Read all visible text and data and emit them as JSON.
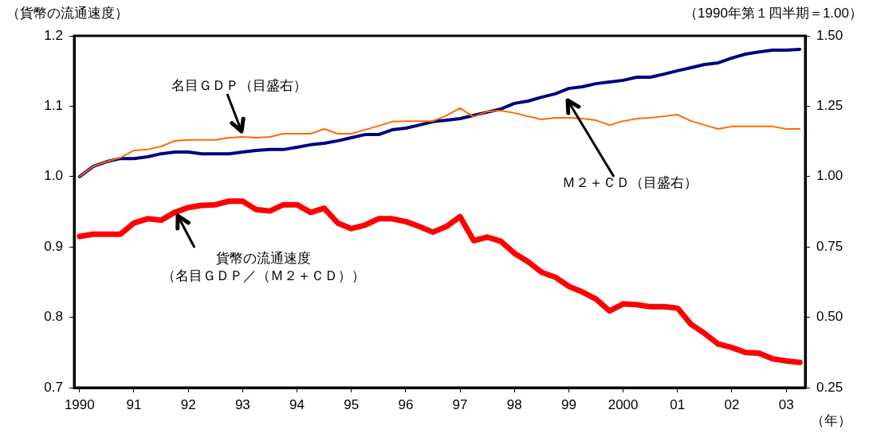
{
  "chart_data": {
    "type": "line",
    "ylabel": "（貨幣の流通速度）",
    "y2label": "（1990年第１四半期＝1.00）",
    "xlabel": "（年）",
    "x": [
      1990,
      1990.25,
      1990.5,
      1990.75,
      1991,
      1991.25,
      1991.5,
      1991.75,
      1992,
      1992.25,
      1992.5,
      1992.75,
      1993,
      1993.25,
      1993.5,
      1993.75,
      1994,
      1994.25,
      1994.5,
      1994.75,
      1995,
      1995.25,
      1995.5,
      1995.75,
      1996,
      1996.25,
      1996.5,
      1996.75,
      1997,
      1997.25,
      1997.5,
      1997.75,
      1998,
      1998.25,
      1998.5,
      1998.75,
      1999,
      1999.25,
      1999.5,
      1999.75,
      2000,
      2000.25,
      2000.5,
      2000.75,
      2001,
      2001.25,
      2001.5,
      2001.75,
      2002,
      2002.25,
      2002.5,
      2002.75,
      2003,
      2003.25
    ],
    "series": [
      {
        "name": "Ｍ２＋ＣＤ（目盛右）",
        "color": "#000080",
        "axis": "y2",
        "values": [
          1.0,
          1.036,
          1.053,
          1.064,
          1.064,
          1.07,
          1.081,
          1.087,
          1.087,
          1.081,
          1.081,
          1.081,
          1.087,
          1.093,
          1.096,
          1.096,
          1.104,
          1.113,
          1.118,
          1.127,
          1.138,
          1.149,
          1.149,
          1.166,
          1.172,
          1.183,
          1.195,
          1.2,
          1.206,
          1.217,
          1.229,
          1.24,
          1.26,
          1.268,
          1.282,
          1.294,
          1.313,
          1.319,
          1.33,
          1.336,
          1.342,
          1.353,
          1.353,
          1.364,
          1.376,
          1.387,
          1.398,
          1.404,
          1.421,
          1.435,
          1.443,
          1.449,
          1.449,
          1.452
        ]
      },
      {
        "name": "名目ＧＤＰ（目盛右）",
        "color": "#ff6a00",
        "axis": "y2",
        "values": [
          1.0,
          1.036,
          1.053,
          1.067,
          1.093,
          1.096,
          1.107,
          1.127,
          1.13,
          1.13,
          1.13,
          1.138,
          1.141,
          1.138,
          1.141,
          1.152,
          1.152,
          1.152,
          1.169,
          1.152,
          1.152,
          1.166,
          1.18,
          1.195,
          1.197,
          1.197,
          1.197,
          1.217,
          1.243,
          1.212,
          1.231,
          1.234,
          1.226,
          1.214,
          1.203,
          1.209,
          1.209,
          1.206,
          1.2,
          1.183,
          1.197,
          1.206,
          1.209,
          1.214,
          1.22,
          1.197,
          1.183,
          1.169,
          1.178,
          1.178,
          1.178,
          1.178,
          1.169,
          1.169
        ]
      },
      {
        "name": "貨幣の流通速度（名目ＧＤＰ／（Ｍ２＋ＣＤ））",
        "color": "#ff0000",
        "axis": "y",
        "values": [
          0.915,
          0.918,
          0.918,
          0.918,
          0.934,
          0.94,
          0.938,
          0.949,
          0.956,
          0.959,
          0.96,
          0.965,
          0.965,
          0.953,
          0.951,
          0.96,
          0.96,
          0.949,
          0.955,
          0.934,
          0.926,
          0.931,
          0.94,
          0.94,
          0.936,
          0.929,
          0.921,
          0.929,
          0.943,
          0.909,
          0.914,
          0.908,
          0.891,
          0.879,
          0.864,
          0.857,
          0.844,
          0.836,
          0.826,
          0.809,
          0.819,
          0.818,
          0.815,
          0.815,
          0.813,
          0.79,
          0.777,
          0.762,
          0.757,
          0.75,
          0.749,
          0.741,
          0.738,
          0.736
        ]
      }
    ],
    "xlim": [
      1989.9,
      2003.35
    ],
    "xticks": [
      {
        "value": 1990,
        "label": "1990"
      },
      {
        "value": 1991,
        "label": "91"
      },
      {
        "value": 1992,
        "label": "92"
      },
      {
        "value": 1993,
        "label": "93"
      },
      {
        "value": 1994,
        "label": "94"
      },
      {
        "value": 1995,
        "label": "95"
      },
      {
        "value": 1996,
        "label": "96"
      },
      {
        "value": 1997,
        "label": "97"
      },
      {
        "value": 1998,
        "label": "98"
      },
      {
        "value": 1999,
        "label": "99"
      },
      {
        "value": 2000,
        "label": "2000"
      },
      {
        "value": 2001,
        "label": "01"
      },
      {
        "value": 2002,
        "label": "02"
      },
      {
        "value": 2003,
        "label": "03"
      }
    ],
    "ylim": [
      0.7,
      1.2
    ],
    "yticks": [
      {
        "value": 0.7,
        "label": "0.7"
      },
      {
        "value": 0.8,
        "label": "0.8"
      },
      {
        "value": 0.9,
        "label": "0.9"
      },
      {
        "value": 1.0,
        "label": "1.0"
      },
      {
        "value": 1.1,
        "label": "1.1"
      },
      {
        "value": 1.2,
        "label": "1.2"
      }
    ],
    "y2lim": [
      0.25,
      1.5
    ],
    "y2ticks": [
      {
        "value": 0.25,
        "label": "0.25"
      },
      {
        "value": 0.5,
        "label": "0.50"
      },
      {
        "value": 0.75,
        "label": "0.75"
      },
      {
        "value": 1.0,
        "label": "1.00"
      },
      {
        "value": 1.25,
        "label": "1.25"
      },
      {
        "value": 1.5,
        "label": "1.50"
      }
    ],
    "grid": false,
    "legend": false
  }
}
